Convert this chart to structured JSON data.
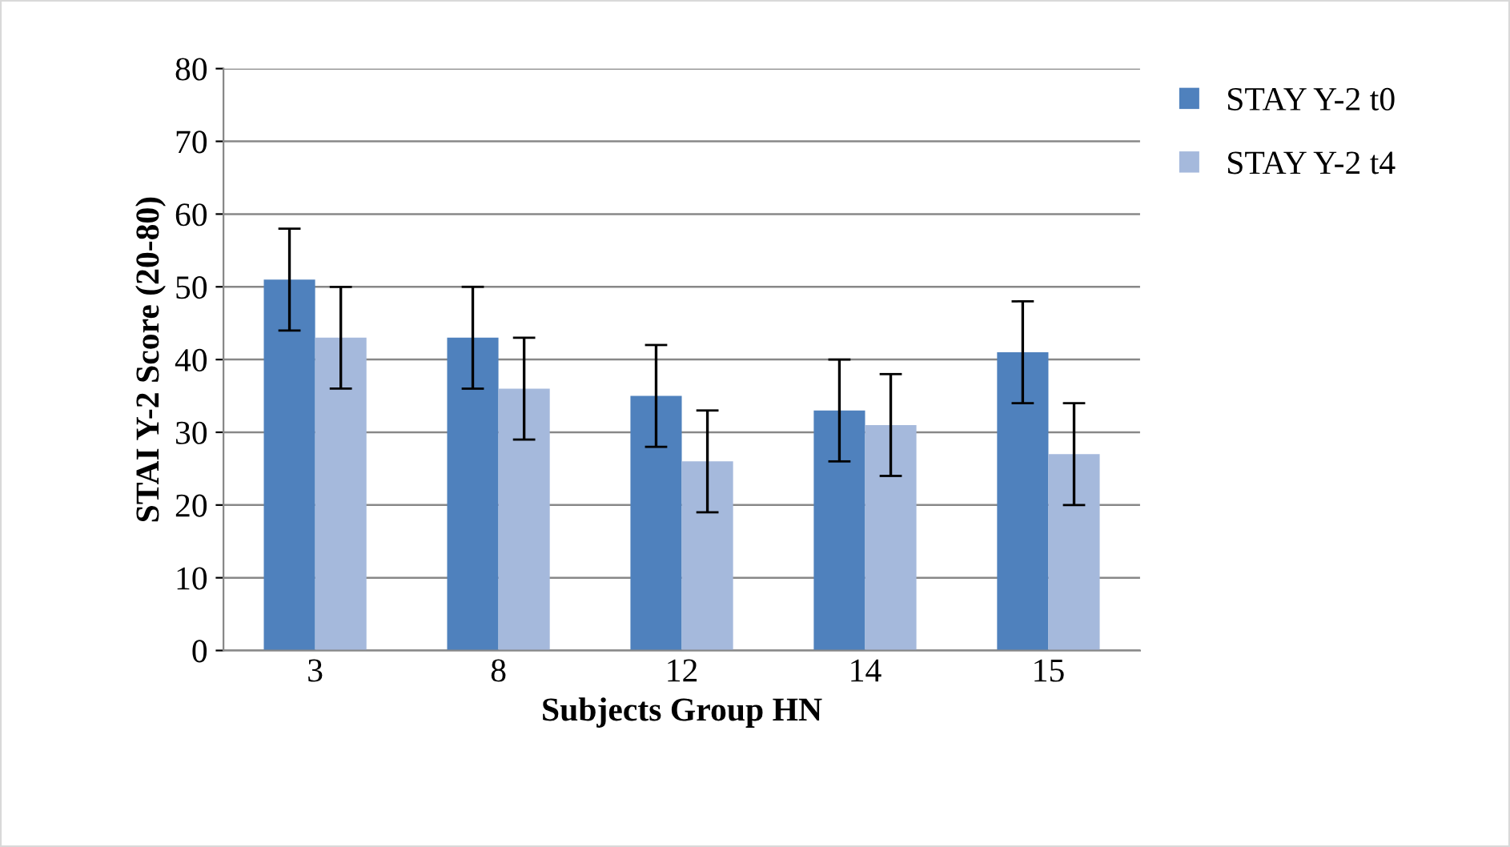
{
  "chart_data": {
    "type": "bar",
    "xlabel": "Subjects Group HN",
    "ylabel": "STAI Y-2 Score (20-80)",
    "categories": [
      "3",
      "8",
      "12",
      "14",
      "15"
    ],
    "series": [
      {
        "name": "STAY Y-2 t0",
        "color": "#4f81bd",
        "values": [
          51,
          43,
          35,
          33,
          41
        ],
        "errors": [
          7,
          7,
          7,
          7,
          7
        ]
      },
      {
        "name": "STAY Y-2 t4",
        "color": "#a5b9dc",
        "values": [
          43,
          36,
          26,
          31,
          27
        ],
        "errors": [
          7,
          7,
          7,
          7,
          7
        ]
      }
    ],
    "ylim": [
      0,
      80
    ],
    "yticks": [
      0,
      10,
      20,
      30,
      40,
      50,
      60,
      70,
      80
    ],
    "grid": "y",
    "legend": "top right"
  }
}
